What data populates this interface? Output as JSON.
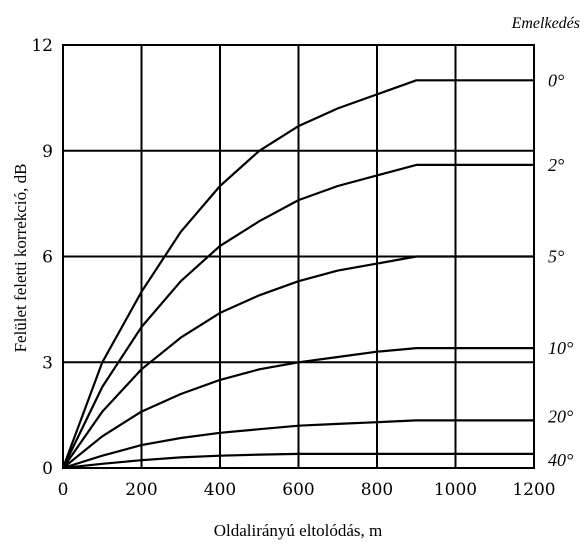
{
  "chart_data": {
    "type": "line",
    "xlabel": "Oldalirányú eltolódás, m",
    "ylabel": "Felület feletti korrekció, dB",
    "legend_title": "Emelkedés",
    "xlim": [
      0,
      1200
    ],
    "ylim": [
      0,
      12
    ],
    "x_ticks": [
      0,
      200,
      400,
      600,
      800,
      1000,
      1200
    ],
    "y_ticks": [
      0,
      3,
      6,
      9,
      12
    ],
    "grid": true,
    "series": [
      {
        "name": "0°",
        "x": [
          0,
          100,
          200,
          300,
          400,
          500,
          600,
          700,
          800,
          900,
          1000,
          1200
        ],
        "y": [
          0,
          3.0,
          5.0,
          6.7,
          8.0,
          9.0,
          9.7,
          10.2,
          10.6,
          11.0,
          11.0,
          11.0
        ]
      },
      {
        "name": "2°",
        "x": [
          0,
          100,
          200,
          300,
          400,
          500,
          600,
          700,
          800,
          900,
          1000,
          1200
        ],
        "y": [
          0,
          2.3,
          4.0,
          5.3,
          6.3,
          7.0,
          7.6,
          8.0,
          8.3,
          8.6,
          8.6,
          8.6
        ]
      },
      {
        "name": "5°",
        "x": [
          0,
          100,
          200,
          300,
          400,
          500,
          600,
          700,
          800,
          900,
          1000,
          1200
        ],
        "y": [
          0,
          1.6,
          2.8,
          3.7,
          4.4,
          4.9,
          5.3,
          5.6,
          5.8,
          6.0,
          6.0,
          6.0
        ]
      },
      {
        "name": "10°",
        "x": [
          0,
          100,
          200,
          300,
          400,
          500,
          600,
          700,
          800,
          900,
          1000,
          1200
        ],
        "y": [
          0,
          0.9,
          1.6,
          2.1,
          2.5,
          2.8,
          3.0,
          3.15,
          3.3,
          3.4,
          3.4,
          3.4
        ]
      },
      {
        "name": "20°",
        "x": [
          0,
          100,
          200,
          300,
          400,
          500,
          600,
          700,
          800,
          900,
          1000,
          1200
        ],
        "y": [
          0,
          0.35,
          0.65,
          0.85,
          1.0,
          1.1,
          1.2,
          1.25,
          1.3,
          1.35,
          1.35,
          1.35
        ]
      },
      {
        "name": "40°",
        "x": [
          0,
          100,
          200,
          300,
          400,
          500,
          600,
          700,
          800,
          900,
          1000,
          1200
        ],
        "y": [
          0,
          0.12,
          0.22,
          0.3,
          0.35,
          0.38,
          0.4,
          0.4,
          0.4,
          0.4,
          0.4,
          0.4
        ]
      }
    ]
  }
}
